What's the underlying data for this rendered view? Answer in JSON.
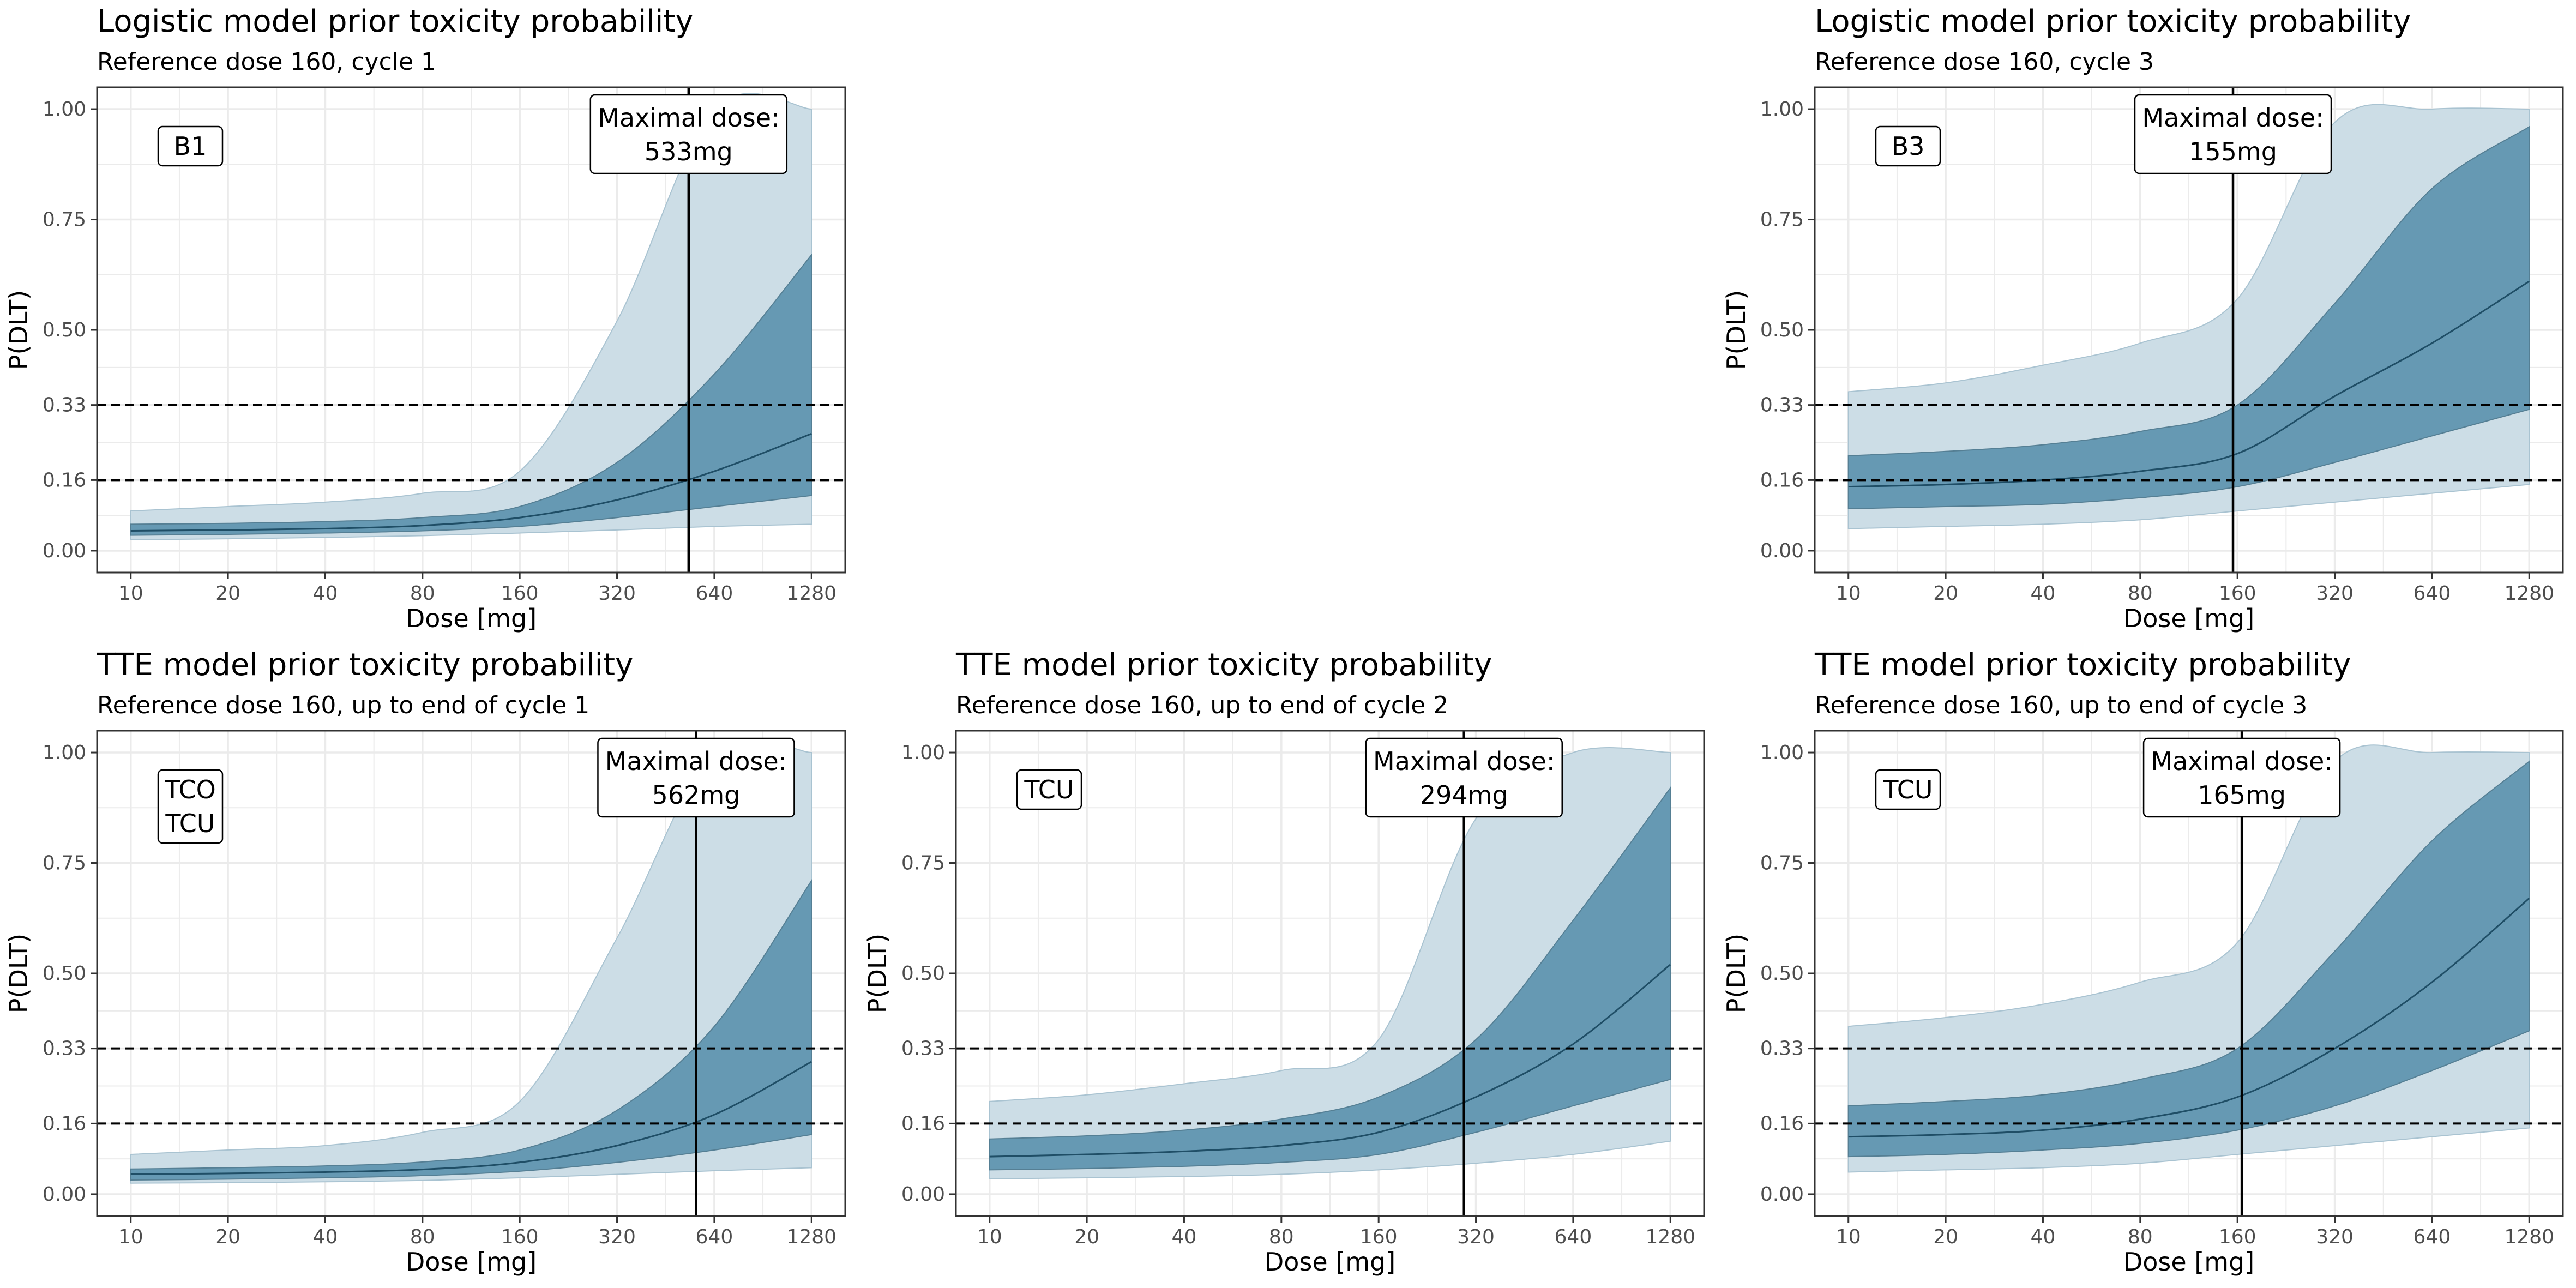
{
  "chart_data": [
    {
      "type": "area",
      "title": "Logistic model prior toxicity probability",
      "subtitle": "Reference dose 160, cycle 1",
      "xlabel": "Dose [mg]",
      "ylabel": "P(DLT)",
      "x_scale": "log",
      "xlim": [
        10,
        1280
      ],
      "ylim": [
        0,
        1
      ],
      "x_ticks": [
        "10",
        "20",
        "40",
        "80",
        "160",
        "320",
        "640",
        "1280"
      ],
      "y_ticks": [
        "0.00",
        "0.16",
        "0.33",
        "0.50",
        "0.75",
        "1.00"
      ],
      "hlines": [
        0.16,
        0.33
      ],
      "vline": 533,
      "box_label": "Maximal dose:\n533mg",
      "tag_label": "B1",
      "x": [
        10,
        20,
        40,
        80,
        160,
        320,
        640,
        1280
      ],
      "series": [
        {
          "name": "",
          "values": [
            0.045,
            0.047,
            0.05,
            0.057,
            0.075,
            0.115,
            0.18,
            0.265
          ]
        },
        {
          "name": "",
          "values": [
            0.035,
            0.037,
            0.04,
            0.045,
            0.055,
            0.075,
            0.1,
            0.125
          ]
        },
        {
          "name": "",
          "values": [
            0.06,
            0.062,
            0.066,
            0.075,
            0.1,
            0.2,
            0.4,
            0.67
          ]
        },
        {
          "name": "",
          "values": [
            0.025,
            0.027,
            0.03,
            0.034,
            0.04,
            0.047,
            0.055,
            0.06
          ]
        },
        {
          "name": "",
          "values": [
            0.09,
            0.1,
            0.11,
            0.13,
            0.18,
            0.52,
            1.0,
            1.0
          ]
        }
      ]
    },
    {
      "type": "area",
      "title": "Logistic model prior toxicity probability",
      "subtitle": "Reference dose 160, cycle 3",
      "xlabel": "Dose [mg]",
      "ylabel": "P(DLT)",
      "x_scale": "log",
      "xlim": [
        10,
        1280
      ],
      "ylim": [
        0,
        1
      ],
      "x_ticks": [
        "10",
        "20",
        "40",
        "80",
        "160",
        "320",
        "640",
        "1280"
      ],
      "y_ticks": [
        "0.00",
        "0.16",
        "0.33",
        "0.50",
        "0.75",
        "1.00"
      ],
      "hlines": [
        0.16,
        0.33
      ],
      "vline": 155,
      "box_label": "Maximal dose:\n155mg",
      "tag_label": "B3",
      "x": [
        10,
        20,
        40,
        80,
        160,
        320,
        640,
        1280
      ],
      "series": [
        {
          "name": "",
          "values": [
            0.145,
            0.15,
            0.16,
            0.18,
            0.22,
            0.35,
            0.47,
            0.61
          ]
        },
        {
          "name": "",
          "values": [
            0.095,
            0.1,
            0.105,
            0.12,
            0.145,
            0.2,
            0.26,
            0.32
          ]
        },
        {
          "name": "",
          "values": [
            0.215,
            0.225,
            0.24,
            0.27,
            0.33,
            0.56,
            0.82,
            0.96
          ]
        },
        {
          "name": "",
          "values": [
            0.05,
            0.055,
            0.06,
            0.07,
            0.09,
            0.11,
            0.13,
            0.15
          ]
        },
        {
          "name": "",
          "values": [
            0.36,
            0.38,
            0.42,
            0.47,
            0.57,
            0.97,
            1.0,
            1.0
          ]
        }
      ]
    },
    {
      "type": "area",
      "title": "TTE model prior toxicity probability",
      "subtitle": "Reference dose 160, up to end of cycle 1",
      "xlabel": "Dose [mg]",
      "ylabel": "P(DLT)",
      "x_scale": "log",
      "xlim": [
        10,
        1280
      ],
      "ylim": [
        0,
        1
      ],
      "x_ticks": [
        "10",
        "20",
        "40",
        "80",
        "160",
        "320",
        "640",
        "1280"
      ],
      "y_ticks": [
        "0.00",
        "0.16",
        "0.33",
        "0.50",
        "0.75",
        "1.00"
      ],
      "hlines": [
        0.16,
        0.33
      ],
      "vline": 562,
      "box_label": "Maximal dose:\n562mg",
      "tag_label": "TCO\nTCU",
      "x": [
        10,
        20,
        40,
        80,
        160,
        320,
        640,
        1280
      ],
      "series": [
        {
          "name": "",
          "values": [
            0.045,
            0.047,
            0.05,
            0.056,
            0.072,
            0.11,
            0.18,
            0.3
          ]
        },
        {
          "name": "",
          "values": [
            0.032,
            0.034,
            0.037,
            0.042,
            0.052,
            0.072,
            0.1,
            0.135
          ]
        },
        {
          "name": "",
          "values": [
            0.057,
            0.06,
            0.064,
            0.073,
            0.1,
            0.19,
            0.38,
            0.71
          ]
        },
        {
          "name": "",
          "values": [
            0.025,
            0.026,
            0.028,
            0.031,
            0.037,
            0.045,
            0.053,
            0.06
          ]
        },
        {
          "name": "",
          "values": [
            0.09,
            0.1,
            0.11,
            0.14,
            0.21,
            0.58,
            1.0,
            1.0
          ]
        }
      ]
    },
    {
      "type": "area",
      "title": "TTE model prior toxicity probability",
      "subtitle": "Reference dose 160, up to end of cycle 2",
      "xlabel": "Dose [mg]",
      "ylabel": "P(DLT)",
      "x_scale": "log",
      "xlim": [
        10,
        1280
      ],
      "ylim": [
        0,
        1
      ],
      "x_ticks": [
        "10",
        "20",
        "40",
        "80",
        "160",
        "320",
        "640",
        "1280"
      ],
      "y_ticks": [
        "0.00",
        "0.16",
        "0.33",
        "0.50",
        "0.75",
        "1.00"
      ],
      "hlines": [
        0.16,
        0.33
      ],
      "vline": 294,
      "box_label": "Maximal dose:\n294mg",
      "tag_label": "TCU",
      "x": [
        10,
        20,
        40,
        80,
        160,
        320,
        640,
        1280
      ],
      "series": [
        {
          "name": "",
          "values": [
            0.085,
            0.09,
            0.097,
            0.11,
            0.14,
            0.22,
            0.34,
            0.52
          ]
        },
        {
          "name": "",
          "values": [
            0.055,
            0.058,
            0.063,
            0.072,
            0.09,
            0.14,
            0.2,
            0.26
          ]
        },
        {
          "name": "",
          "values": [
            0.125,
            0.132,
            0.145,
            0.17,
            0.22,
            0.35,
            0.62,
            0.92
          ]
        },
        {
          "name": "",
          "values": [
            0.035,
            0.037,
            0.04,
            0.045,
            0.055,
            0.07,
            0.09,
            0.12
          ]
        },
        {
          "name": "",
          "values": [
            0.21,
            0.225,
            0.25,
            0.28,
            0.35,
            0.85,
            1.0,
            1.0
          ]
        }
      ]
    },
    {
      "type": "area",
      "title": "TTE model prior toxicity probability",
      "subtitle": "Reference dose 160, up to end of cycle 3",
      "xlabel": "Dose [mg]",
      "ylabel": "P(DLT)",
      "x_scale": "log",
      "xlim": [
        10,
        1280
      ],
      "ylim": [
        0,
        1
      ],
      "x_ticks": [
        "10",
        "20",
        "40",
        "80",
        "160",
        "320",
        "640",
        "1280"
      ],
      "y_ticks": [
        "0.00",
        "0.16",
        "0.33",
        "0.50",
        "0.75",
        "1.00"
      ],
      "hlines": [
        0.16,
        0.33
      ],
      "vline": 165,
      "box_label": "Maximal dose:\n165mg",
      "tag_label": "TCU",
      "x": [
        10,
        20,
        40,
        80,
        160,
        320,
        640,
        1280
      ],
      "series": [
        {
          "name": "",
          "values": [
            0.13,
            0.135,
            0.145,
            0.17,
            0.22,
            0.33,
            0.48,
            0.67
          ]
        },
        {
          "name": "",
          "values": [
            0.085,
            0.09,
            0.1,
            0.115,
            0.145,
            0.2,
            0.28,
            0.37
          ]
        },
        {
          "name": "",
          "values": [
            0.2,
            0.21,
            0.225,
            0.26,
            0.33,
            0.55,
            0.8,
            0.98
          ]
        },
        {
          "name": "",
          "values": [
            0.05,
            0.055,
            0.06,
            0.07,
            0.09,
            0.11,
            0.13,
            0.15
          ]
        },
        {
          "name": "",
          "values": [
            0.38,
            0.4,
            0.43,
            0.48,
            0.57,
            0.98,
            1.0,
            1.0
          ]
        }
      ]
    }
  ],
  "colors": {
    "outer_band": "#ccdde6",
    "inner_band": "#6699b3",
    "median_line": "#1f4e66",
    "grid": "#ebebeb",
    "panel_border": "#333333"
  }
}
